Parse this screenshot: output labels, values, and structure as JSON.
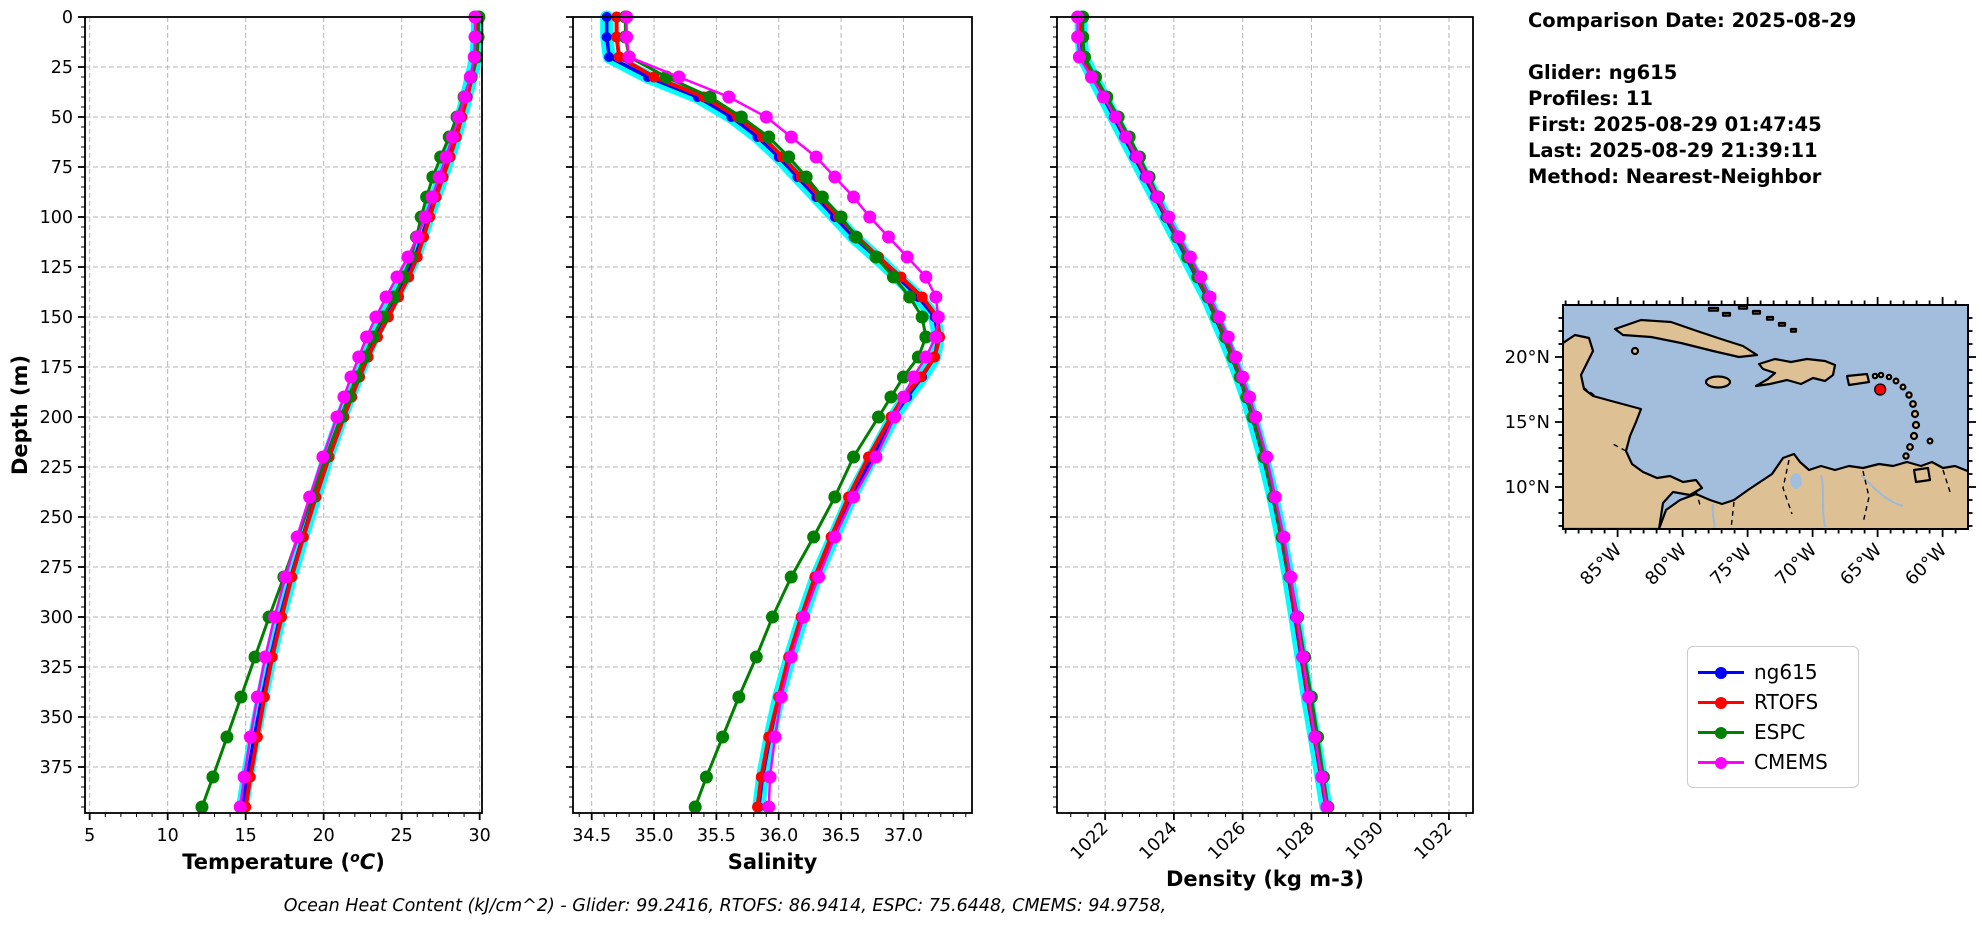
{
  "info": {
    "comparison_date": "Comparison Date: 2025-08-29",
    "glider": "Glider: ng615",
    "profiles": "Profiles: 11",
    "first": "First: 2025-08-29 01:47:45",
    "last": "Last: 2025-08-29 21:39:11",
    "method": "Method: Nearest-Neighbor"
  },
  "caption": "Ocean Heat Content (kJ/cm^2) - Glider: 99.2416,  RTOFS: 86.9414,  ESPC: 75.6448,  CMEMS: 94.9758,",
  "ohc": {
    "unit": "kJ/cm^2",
    "glider": 99.2416,
    "rtofs": 86.9414,
    "espc": 75.6448,
    "cmems": 94.9758
  },
  "legend": {
    "entries": [
      {
        "label": "ng615",
        "color": "#0000ff"
      },
      {
        "label": "RTOFS",
        "color": "#ff0000"
      },
      {
        "label": "ESPC",
        "color": "#008000"
      },
      {
        "label": "CMEMS",
        "color": "#ff00ff"
      }
    ]
  },
  "map": {
    "ocean_color": "#a3bedd",
    "land_color": "#ddc195",
    "marker_color": "#ff0000",
    "lon_ticks": [
      85,
      80,
      75,
      70,
      65,
      60
    ],
    "lon_labels": [
      "85°W",
      "80°W",
      "75°W",
      "70°W",
      "65°W",
      "60°W"
    ],
    "lat_ticks": [
      20,
      15,
      10
    ],
    "lat_labels": [
      "20°N",
      "15°N",
      "10°N"
    ],
    "glider_position": {
      "lon_w": 64.8,
      "lat_n": 17.5
    }
  },
  "chart_data": {
    "type": "line",
    "ylabel": "Depth (m)",
    "ylim": [
      0,
      398
    ],
    "yticks": [
      0,
      25,
      50,
      75,
      100,
      125,
      150,
      175,
      200,
      225,
      250,
      275,
      300,
      325,
      350,
      375
    ],
    "grid": true,
    "legend_position": "right-outside",
    "series_names": [
      "ng615",
      "RTOFS",
      "ESPC",
      "CMEMS"
    ],
    "colors": {
      "ng615": "#0000ff",
      "RTOFS": "#ff0000",
      "ESPC": "#008000",
      "CMEMS": "#ff00ff",
      "envelope": "#00ffff"
    },
    "envelope": {
      "series": "ng615",
      "color": "#00ffff",
      "width": 13
    },
    "depths": [
      0,
      10,
      20,
      30,
      40,
      50,
      60,
      70,
      80,
      90,
      100,
      110,
      120,
      130,
      140,
      150,
      160,
      170,
      180,
      190,
      200,
      220,
      240,
      260,
      280,
      300,
      320,
      340,
      360,
      380,
      395
    ],
    "plots": [
      {
        "id": "temperature",
        "xlabel": "Temperature (°C)",
        "xlim": [
          4.7,
          30.15
        ],
        "xticks": [
          5,
          10,
          15,
          20,
          25,
          30
        ],
        "xtick_labels": [
          "5",
          "10",
          "15",
          "20",
          "25",
          "30"
        ],
        "minor_step": 1,
        "rotate_xticks": false,
        "series": {
          "ng615": [
            29.85,
            29.85,
            29.75,
            29.45,
            29.15,
            28.8,
            28.45,
            28.05,
            27.6,
            27.15,
            26.7,
            26.3,
            25.85,
            25.25,
            24.55,
            23.85,
            23.2,
            22.65,
            22.15,
            21.65,
            21.15,
            20.25,
            19.45,
            18.65,
            17.9,
            17.2,
            16.6,
            16.05,
            15.55,
            15.1,
            14.8
          ],
          "RTOFS": [
            29.9,
            29.88,
            29.8,
            29.5,
            29.2,
            28.85,
            28.5,
            28.1,
            27.65,
            27.2,
            26.8,
            26.4,
            26.0,
            25.45,
            24.8,
            24.15,
            23.45,
            22.85,
            22.3,
            21.8,
            21.3,
            20.35,
            19.5,
            18.7,
            17.95,
            17.3,
            16.7,
            16.2,
            15.75,
            15.3,
            15.0
          ],
          "ESPC": [
            29.95,
            29.9,
            29.8,
            29.45,
            29.0,
            28.55,
            28.05,
            27.5,
            27.0,
            26.6,
            26.25,
            25.95,
            25.6,
            25.1,
            24.5,
            23.8,
            23.15,
            22.6,
            22.1,
            21.6,
            21.1,
            20.15,
            19.25,
            18.35,
            17.45,
            16.5,
            15.6,
            14.7,
            13.8,
            12.9,
            12.2
          ],
          "CMEMS": [
            29.7,
            29.7,
            29.65,
            29.4,
            29.05,
            28.65,
            28.25,
            27.85,
            27.4,
            26.95,
            26.5,
            26.0,
            25.4,
            24.7,
            24.0,
            23.35,
            22.75,
            22.25,
            21.75,
            21.3,
            20.85,
            19.95,
            19.1,
            18.3,
            17.55,
            16.85,
            16.25,
            15.75,
            15.3,
            14.9,
            14.65
          ]
        }
      },
      {
        "id": "salinity",
        "xlabel": "Salinity",
        "xlim": [
          34.35,
          37.55
        ],
        "xticks": [
          34.5,
          35.0,
          35.5,
          36.0,
          36.5,
          37.0
        ],
        "xtick_labels": [
          "34.5",
          "35.0",
          "35.5",
          "36.0",
          "36.5",
          "37.0"
        ],
        "minor_step": 0.1,
        "rotate_xticks": false,
        "series": {
          "ng615": [
            34.62,
            34.62,
            34.64,
            34.95,
            35.35,
            35.62,
            35.83,
            36.0,
            36.15,
            36.3,
            36.45,
            36.6,
            36.78,
            36.95,
            37.12,
            37.25,
            37.28,
            37.25,
            37.15,
            37.03,
            36.92,
            36.75,
            36.58,
            36.44,
            36.3,
            36.19,
            36.09,
            36.0,
            35.93,
            35.87,
            35.84
          ],
          "RTOFS": [
            34.7,
            34.7,
            34.72,
            35.0,
            35.4,
            35.67,
            35.87,
            36.03,
            36.18,
            36.33,
            36.48,
            36.63,
            36.8,
            36.98,
            37.15,
            37.27,
            37.29,
            37.25,
            37.14,
            37.0,
            36.9,
            36.72,
            36.56,
            36.42,
            36.29,
            36.18,
            36.08,
            36.0,
            35.92,
            35.86,
            35.83
          ],
          "ESPC": [
            34.77,
            34.77,
            34.8,
            35.1,
            35.45,
            35.7,
            35.92,
            36.08,
            36.22,
            36.35,
            36.5,
            36.62,
            36.78,
            36.92,
            37.05,
            37.15,
            37.18,
            37.12,
            37.0,
            36.9,
            36.8,
            36.6,
            36.45,
            36.28,
            36.1,
            35.95,
            35.82,
            35.68,
            35.55,
            35.42,
            35.33
          ],
          "CMEMS": [
            34.78,
            34.78,
            34.8,
            35.2,
            35.6,
            35.9,
            36.1,
            36.3,
            36.45,
            36.6,
            36.73,
            36.88,
            37.03,
            37.18,
            37.26,
            37.28,
            37.26,
            37.18,
            37.08,
            37.0,
            36.93,
            36.78,
            36.6,
            36.45,
            36.32,
            36.2,
            36.1,
            36.02,
            35.97,
            35.93,
            35.92
          ]
        }
      },
      {
        "id": "density",
        "xlabel": "Density (kg m-3)",
        "xlim": [
          1020.6,
          1032.7
        ],
        "xticks": [
          1022,
          1024,
          1026,
          1028,
          1030,
          1032
        ],
        "xtick_labels": [
          "1022",
          "1024",
          "1026",
          "1028",
          "1030",
          "1032"
        ],
        "minor_step": 0.5,
        "rotate_xticks": true,
        "series": {
          "ng615": [
            1021.3,
            1021.3,
            1021.35,
            1021.65,
            1021.95,
            1022.25,
            1022.55,
            1022.85,
            1023.15,
            1023.45,
            1023.75,
            1024.05,
            1024.35,
            1024.65,
            1024.95,
            1025.2,
            1025.45,
            1025.68,
            1025.9,
            1026.1,
            1026.28,
            1026.6,
            1026.88,
            1027.12,
            1027.33,
            1027.52,
            1027.7,
            1027.88,
            1028.08,
            1028.28,
            1028.42
          ],
          "RTOFS": [
            1021.32,
            1021.32,
            1021.38,
            1021.68,
            1022.0,
            1022.3,
            1022.6,
            1022.9,
            1023.2,
            1023.5,
            1023.8,
            1024.1,
            1024.4,
            1024.68,
            1024.97,
            1025.23,
            1025.48,
            1025.7,
            1025.92,
            1026.12,
            1026.3,
            1026.62,
            1026.9,
            1027.14,
            1027.35,
            1027.55,
            1027.73,
            1027.9,
            1028.1,
            1028.3,
            1028.44
          ],
          "ESPC": [
            1021.35,
            1021.35,
            1021.4,
            1021.72,
            1022.05,
            1022.38,
            1022.7,
            1023.0,
            1023.28,
            1023.55,
            1023.82,
            1024.1,
            1024.4,
            1024.7,
            1025.0,
            1025.25,
            1025.5,
            1025.72,
            1025.93,
            1026.12,
            1026.3,
            1026.62,
            1026.9,
            1027.15,
            1027.38,
            1027.6,
            1027.8,
            1028.0,
            1028.18,
            1028.35,
            1028.48
          ],
          "CMEMS": [
            1021.2,
            1021.2,
            1021.25,
            1021.6,
            1021.95,
            1022.3,
            1022.6,
            1022.92,
            1023.22,
            1023.52,
            1023.85,
            1024.15,
            1024.48,
            1024.78,
            1025.05,
            1025.32,
            1025.58,
            1025.8,
            1026.0,
            1026.2,
            1026.38,
            1026.7,
            1026.95,
            1027.2,
            1027.4,
            1027.58,
            1027.75,
            1027.92,
            1028.1,
            1028.3,
            1028.45
          ]
        }
      }
    ]
  }
}
